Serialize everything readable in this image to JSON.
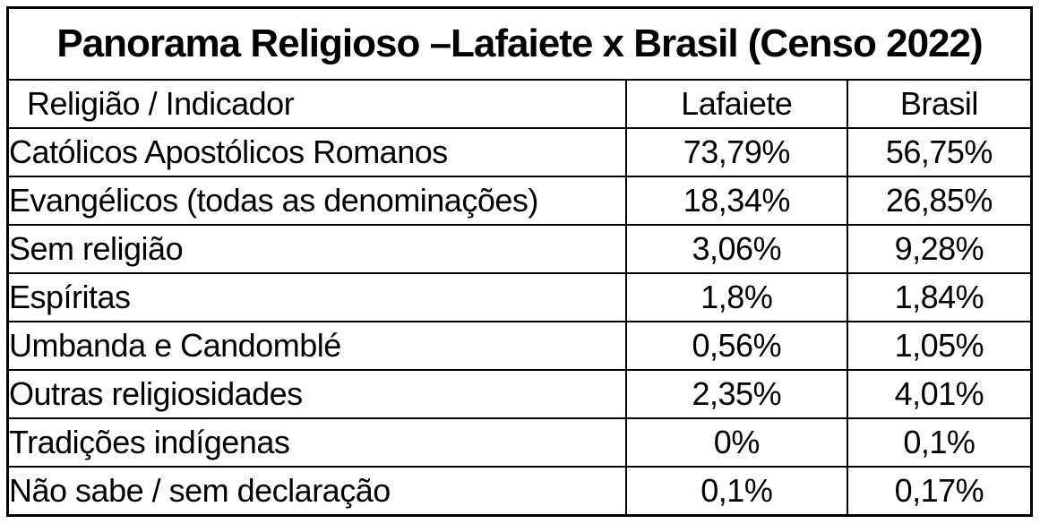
{
  "title": "Panorama Religioso –Lafaiete x Brasil (Censo 2022)",
  "table": {
    "headers": [
      "Religião / Indicador",
      "Lafaiete",
      "Brasil"
    ],
    "rows": [
      {
        "label": "Católicos Apostólicos Romanos",
        "lafaiete": "73,79%",
        "brasil": "56,75%"
      },
      {
        "label": "Evangélicos (todas as denominações)",
        "lafaiete": "18,34%",
        "brasil": "26,85%"
      },
      {
        "label": "Sem religião",
        "lafaiete": "3,06%",
        "brasil": "9,28%"
      },
      {
        "label": "Espíritas",
        "lafaiete": "1,8%",
        "brasil": "1,84%"
      },
      {
        "label": "Umbanda e Candomblé",
        "lafaiete": "0,56%",
        "brasil": "1,05%"
      },
      {
        "label": "Outras religiosidades",
        "lafaiete": "2,35%",
        "brasil": "4,01%"
      },
      {
        "label": "Tradições indígenas",
        "lafaiete": "0%",
        "brasil": "0,1%"
      },
      {
        "label": "Não sabe / sem declaração",
        "lafaiete": "0,1%",
        "brasil": "0,17%"
      }
    ]
  },
  "colors": {
    "background": "#ffffff",
    "border": "#000000",
    "text": "#000000"
  },
  "chart_data": {
    "type": "table",
    "title": "Panorama Religioso –Lafaiete x Brasil (Censo 2022)",
    "columns": [
      "Religião / Indicador",
      "Lafaiete",
      "Brasil"
    ],
    "categories": [
      "Católicos Apostólicos Romanos",
      "Evangélicos (todas as denominações)",
      "Sem religião",
      "Espíritas",
      "Umbanda e Candomblé",
      "Outras religiosidades",
      "Tradições indígenas",
      "Não sabe / sem declaração"
    ],
    "series": [
      {
        "name": "Lafaiete",
        "values": [
          73.79,
          18.34,
          3.06,
          1.8,
          0.56,
          2.35,
          0,
          0.1
        ]
      },
      {
        "name": "Brasil",
        "values": [
          56.75,
          26.85,
          9.28,
          1.84,
          1.05,
          4.01,
          0.1,
          0.17
        ]
      }
    ],
    "value_unit": "%",
    "decimal_separator": ","
  }
}
